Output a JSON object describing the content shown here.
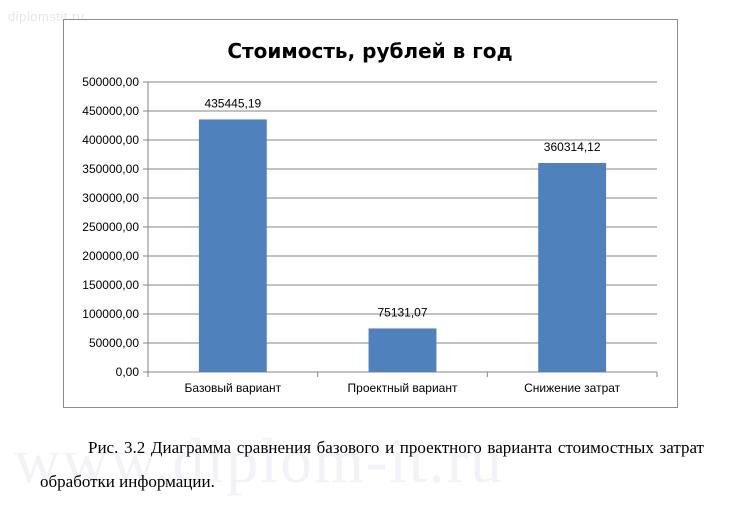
{
  "watermark": {
    "top": "diplomstit.ru",
    "big": "www.diplom-it.ru"
  },
  "caption": {
    "text": "Рис.   3.2 Диаграмма сравнения базового и проектного варианта стоимостных затрат обработки информации."
  },
  "colors": {
    "bar": "#4f81bd",
    "grid": "#868686",
    "axis": "#868686"
  },
  "chart_data": {
    "type": "bar",
    "title": "Стоимость,  рублей в год",
    "categories": [
      "Базовый вариант",
      "Проектный вариант",
      "Снижение затрат"
    ],
    "values": [
      435445.19,
      75131.07,
      360314.12
    ],
    "data_labels": [
      "435445,19",
      "75131,07",
      "360314,12"
    ],
    "ylim": [
      0,
      500000
    ],
    "yticks": [
      0,
      50000,
      100000,
      150000,
      200000,
      250000,
      300000,
      350000,
      400000,
      450000,
      500000
    ],
    "ytick_labels": [
      "0,00",
      "50000,00",
      "100000,00",
      "150000,00",
      "200000,00",
      "250000,00",
      "300000,00",
      "350000,00",
      "400000,00",
      "450000,00",
      "500000,00"
    ],
    "grid": true,
    "legend": "none",
    "xlabel": "",
    "ylabel": ""
  }
}
